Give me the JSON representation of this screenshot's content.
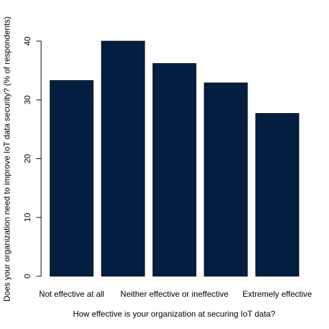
{
  "colors": {
    "bar_fill": "#041E42",
    "axis": "#000000",
    "background": "#ffffff"
  },
  "chart_data": {
    "type": "bar",
    "categories": [
      "Not effective at all",
      "",
      "Neither effective or ineffective",
      "",
      "Extremely effective"
    ],
    "values": [
      33.3,
      40.0,
      36.2,
      32.9,
      27.7
    ],
    "title": "",
    "xlabel": "How effective is your organization at securing IoT data?",
    "ylabel": "Does your organization need to improve IoT data security? (% of respondents)",
    "ylim": [
      0,
      40
    ],
    "yticks": [
      0,
      10,
      20,
      30,
      40
    ],
    "grid": false
  }
}
